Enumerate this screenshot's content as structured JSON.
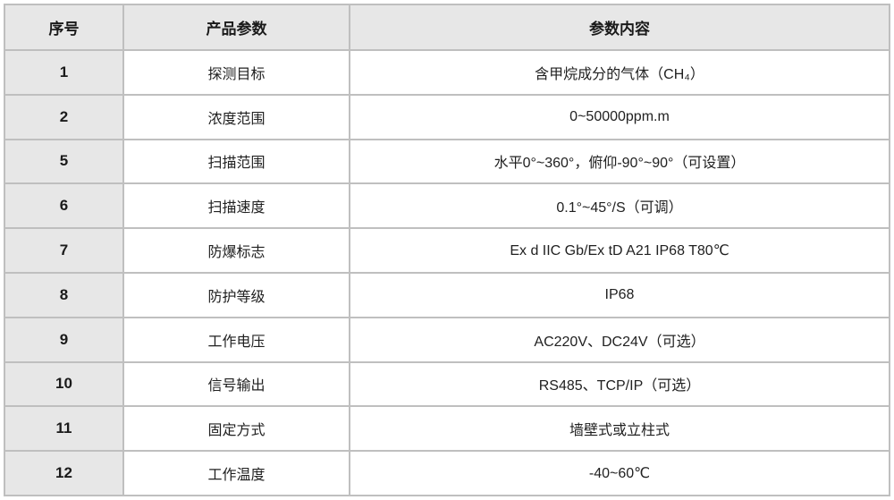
{
  "colors": {
    "border-color": "#bfbfbf",
    "shade-bg": "#e7e7e7",
    "text-color": "#212121",
    "page-bg": "#ffffff"
  },
  "table": {
    "columns": [
      {
        "label": "序号"
      },
      {
        "label": "产品参数"
      },
      {
        "label": "参数内容"
      }
    ],
    "rows": [
      {
        "index": "1",
        "param": "探测目标",
        "value": "含甲烷成分的气体（CH₄）"
      },
      {
        "index": "2",
        "param": "浓度范围",
        "value": "0~50000ppm.m"
      },
      {
        "index": "5",
        "param": "扫描范围",
        "value": "水平0°~360°，俯仰-90°~90°（可设置）"
      },
      {
        "index": "6",
        "param": "扫描速度",
        "value": "0.1°~45°/S（可调）"
      },
      {
        "index": "7",
        "param": "防爆标志",
        "value": "Ex d IIC Gb/Ex tD A21 IP68 T80℃"
      },
      {
        "index": "8",
        "param": "防护等级",
        "value": "IP68"
      },
      {
        "index": "9",
        "param": "工作电压",
        "value": "AC220V、DC24V（可选）"
      },
      {
        "index": "10",
        "param": "信号输出",
        "value": "RS485、TCP/IP（可选）"
      },
      {
        "index": "11",
        "param": "固定方式",
        "value": "墙壁式或立柱式"
      },
      {
        "index": "12",
        "param": "工作温度",
        "value": "-40~60℃"
      }
    ]
  }
}
